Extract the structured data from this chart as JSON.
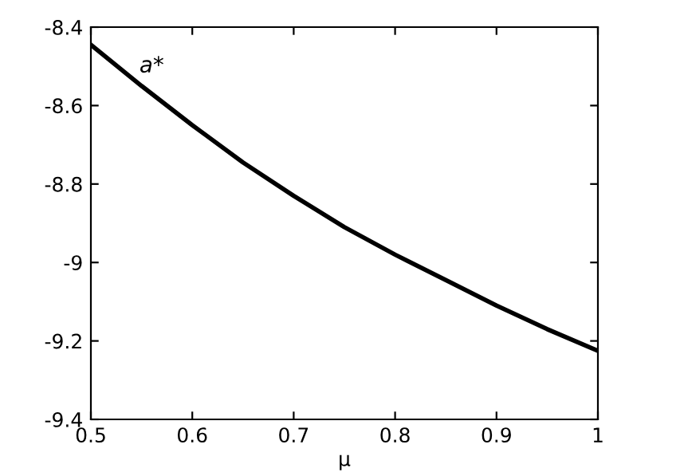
{
  "chart_data": {
    "type": "line",
    "xlabel": "μ",
    "x": [
      0.5,
      0.55,
      0.6,
      0.65,
      0.7,
      0.75,
      0.8,
      0.85,
      0.9,
      0.95,
      1.0
    ],
    "annotations": [
      "a*"
    ],
    "series": [
      {
        "color": "#000000",
        "values": [
          -8.445,
          -8.55,
          -8.65,
          -8.745,
          -8.83,
          -8.91,
          -8.98,
          -9.045,
          -9.11,
          -9.17,
          -9.225
        ]
      }
    ],
    "xlim": [
      0.5,
      1.0
    ],
    "xticks": [
      0.5,
      0.6,
      0.7,
      0.8,
      0.9,
      1
    ],
    "ylim": [
      -9.4,
      -8.4
    ],
    "yticks": [
      -9.4,
      -9.2,
      -9,
      -8.8,
      -8.6,
      -8.4
    ],
    "grid": false,
    "legend": false,
    "line_style": "solid",
    "marker": "none"
  }
}
